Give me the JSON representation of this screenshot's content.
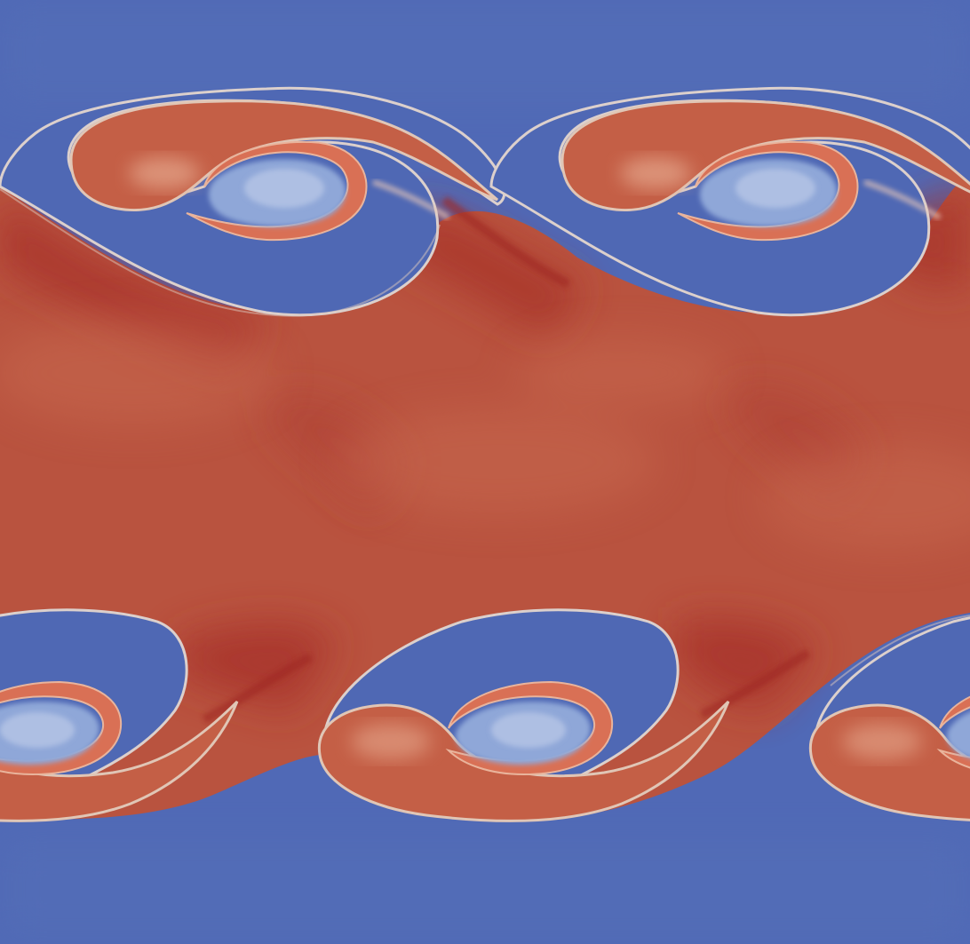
{
  "image": {
    "subject": "fluid-shear-layer-vortex-roll-ups",
    "colormap": "cool-to-warm",
    "colors": {
      "blue_background": "#5069b6",
      "blue_light": "#8ea7d8",
      "red_main": "#b8523f",
      "red_dark": "#a7302a",
      "red_light": "#d98a70",
      "interface_light": "#dcc7bd"
    }
  }
}
